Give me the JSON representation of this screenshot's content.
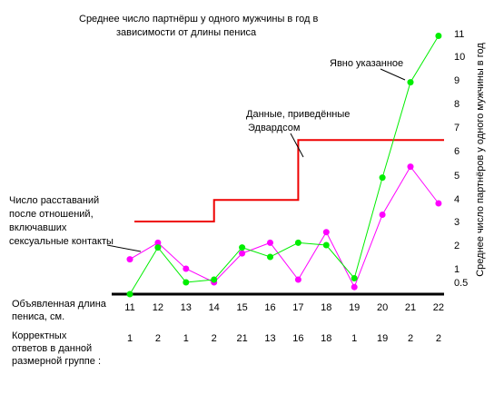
{
  "chart_data": {
    "type": "line",
    "title_lines": [
      "Среднее число партнёрш у одного мужчины в год в",
      "зависимости от длины пениса"
    ],
    "ylabel": "Среднее число партнёров у одного мужчины в год",
    "y_ticks": [
      "0.5",
      "1",
      "2",
      "3",
      "4",
      "5",
      "6",
      "7",
      "8",
      "9",
      "10",
      "11"
    ],
    "x_row_label_lines": [
      "Объявленная длина",
      "пениса, см."
    ],
    "categories": [
      "11",
      "12",
      "13",
      "14",
      "15",
      "16",
      "17",
      "18",
      "19",
      "20",
      "21",
      "22"
    ],
    "counts_label_lines": [
      "Корректных",
      "ответов в  данной",
      "размерной группе :"
    ],
    "counts": [
      "1",
      "2",
      "1",
      "2",
      "21",
      "13",
      "16",
      "18",
      "1",
      "19",
      "2",
      "2"
    ],
    "series": [
      {
        "name": "Явно указанное",
        "color": "#00ee00",
        "values": [
          0,
          1.9,
          0.5,
          0.6,
          1.9,
          1.5,
          2.1,
          2.0,
          0.65,
          4.9,
          8.9,
          10.9
        ]
      },
      {
        "color": "#ff00ff",
        "values": [
          1.4,
          2.1,
          1.0,
          0.5,
          1.65,
          2.1,
          0.6,
          2.55,
          0.3,
          3.3,
          5.35,
          3.8
        ]
      },
      {
        "name": "Данные, приведённые Эдвардсом",
        "color": "#ee0000",
        "x": [
          "11",
          "14",
          "14",
          "17",
          "17",
          "22"
        ],
        "values": [
          3.0,
          3.0,
          3.95,
          3.95,
          6.45,
          6.45
        ]
      }
    ],
    "annotations": {
      "green": "Явно указанное",
      "edwards_lines": [
        "Данные, приведённые",
        "Эдвардсом"
      ],
      "breakups_lines": [
        "Число расставаний",
        "после отношений,",
        "включавших",
        "сексуальные контакты"
      ]
    }
  }
}
